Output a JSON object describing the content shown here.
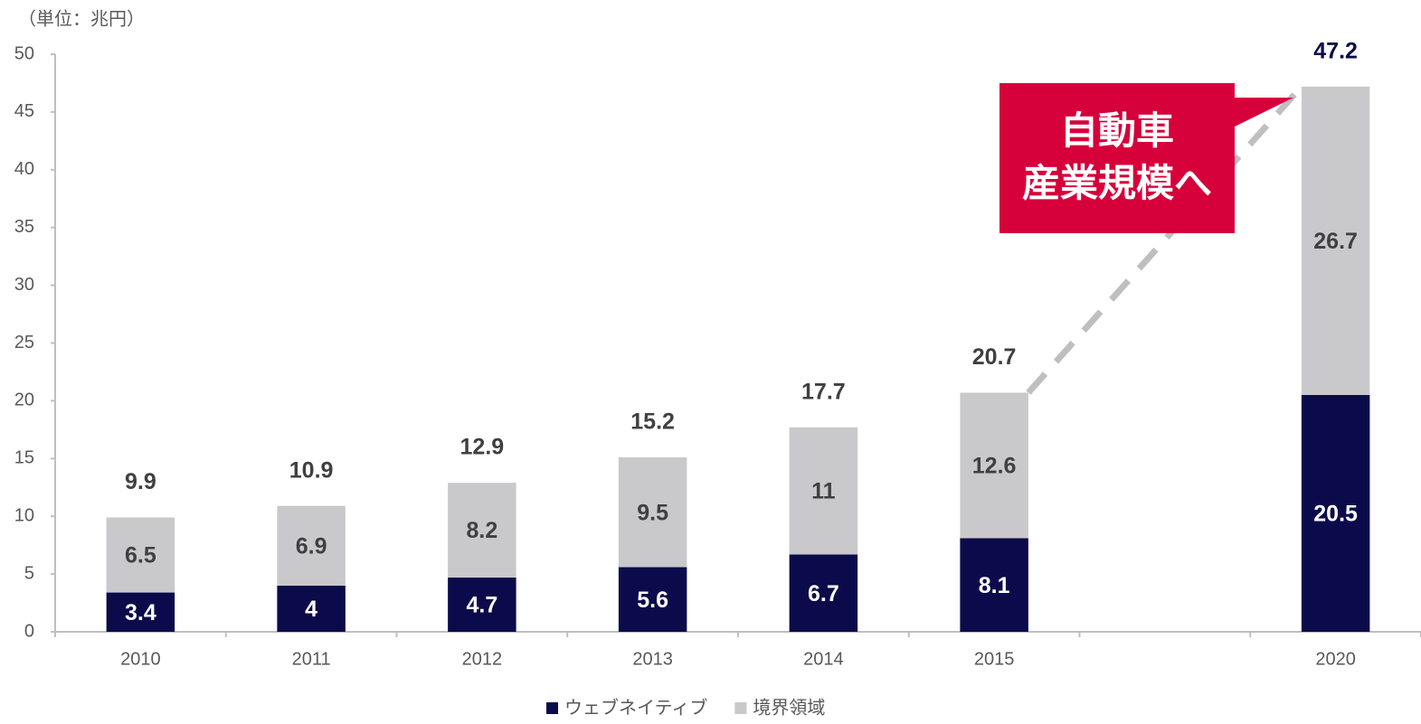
{
  "chart_data": {
    "type": "stacked_bar",
    "unit_label": "（単位：兆円）",
    "categories": [
      "2010",
      "2011",
      "2012",
      "2013",
      "2014",
      "2015",
      null,
      "2020"
    ],
    "series": [
      {
        "name": "ウェブネイティブ",
        "color": "#0b0b4b",
        "values": [
          3.4,
          4,
          4.7,
          5.6,
          6.7,
          8.1,
          null,
          20.5
        ]
      },
      {
        "name": "境界領域",
        "color": "#c9c9cc",
        "values": [
          6.5,
          6.9,
          8.2,
          9.5,
          11,
          12.6,
          null,
          26.7
        ]
      }
    ],
    "totals": [
      9.9,
      10.9,
      12.9,
      15.2,
      17.7,
      20.7,
      null,
      47.2
    ],
    "annotation": [
      "自動車",
      "産業規模へ"
    ],
    "annotation_color": "#d6003b",
    "ylim": [
      0,
      50
    ],
    "yticks": [
      0,
      5,
      10,
      15,
      20,
      25,
      30,
      35,
      40,
      45,
      50
    ],
    "legend": "bottom"
  }
}
